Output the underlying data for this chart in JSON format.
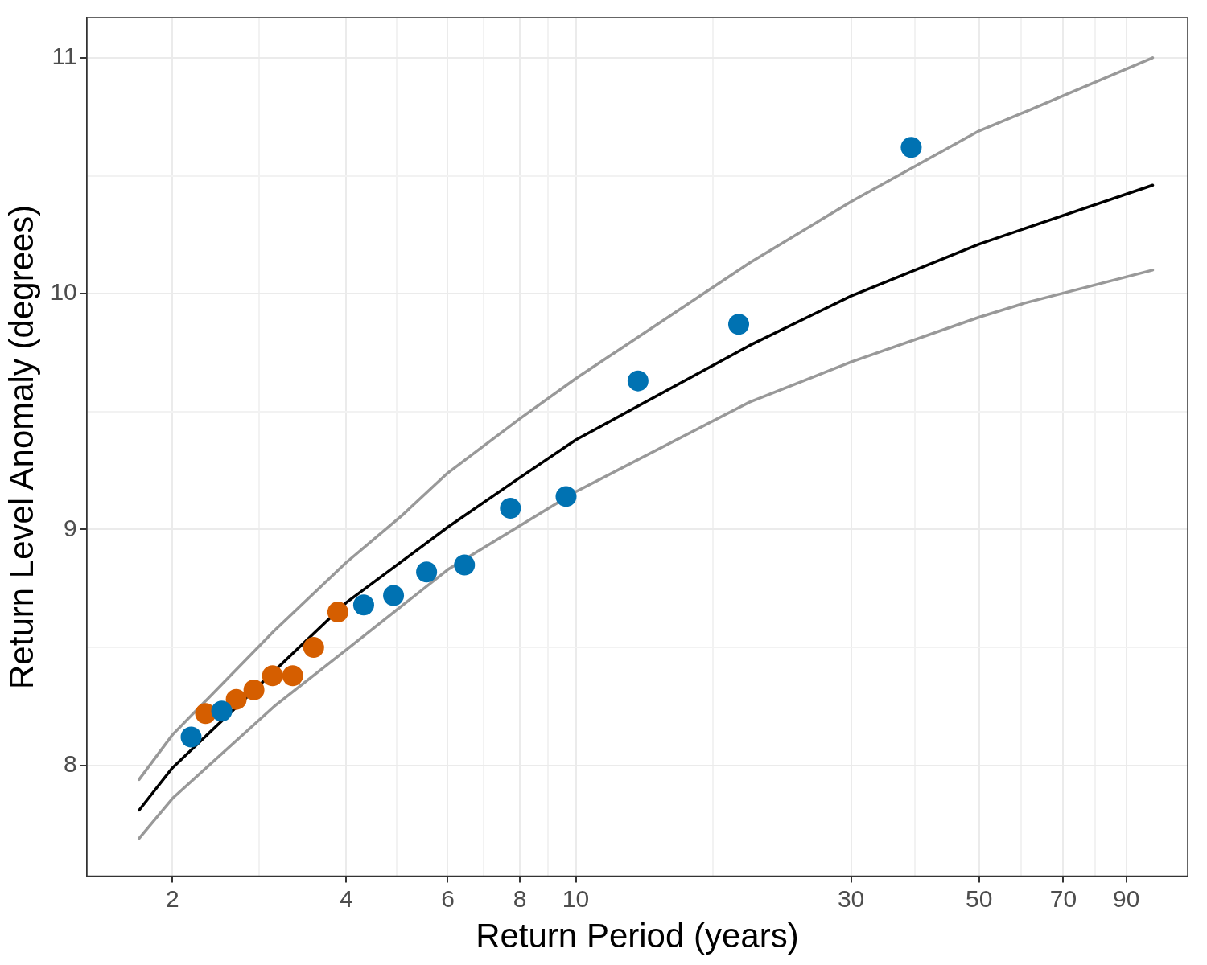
{
  "chart_data": {
    "type": "scatter",
    "xlabel": "Return Period (years)",
    "ylabel": "Return Level Anomaly (degrees)",
    "log": "x",
    "grid": true,
    "legend": false,
    "xlim": [
      1.42,
      115
    ],
    "ylim": [
      7.53,
      11.17
    ],
    "xticks": [
      2,
      {
        "value": 2.83,
        "label": null
      },
      4,
      {
        "value": 4.9,
        "label": null
      },
      6,
      {
        "value": 6.93,
        "label": null
      },
      8,
      {
        "value": 8.94,
        "label": null
      },
      10,
      {
        "value": 17.3,
        "label": null
      },
      30,
      {
        "value": 38.7,
        "label": null
      },
      50,
      {
        "value": 59.2,
        "label": null
      },
      70,
      {
        "value": 79.4,
        "label": null
      },
      90
    ],
    "yticks": [
      8,
      {
        "value": 8.5,
        "label": null
      },
      9,
      {
        "value": 9.5,
        "label": null
      },
      10,
      {
        "value": 10.5,
        "label": null
      },
      11
    ],
    "series": [
      {
        "type": "line",
        "marker": "none",
        "color": "#999999",
        "x": [
          1.75,
          2,
          3,
          4,
          5,
          6,
          8,
          10,
          20,
          30,
          50,
          60,
          100
        ],
        "values": [
          7.94,
          8.13,
          8.57,
          8.86,
          9.06,
          9.24,
          9.47,
          9.64,
          10.13,
          10.39,
          10.69,
          10.77,
          11.0
        ]
      },
      {
        "type": "line",
        "marker": "none",
        "color": "#999999",
        "x": [
          1.75,
          2,
          3,
          4,
          6,
          10,
          20,
          30,
          50,
          60,
          100
        ],
        "values": [
          7.69,
          7.86,
          8.25,
          8.49,
          8.83,
          9.16,
          9.54,
          9.71,
          9.9,
          9.96,
          10.1
        ]
      },
      {
        "type": "line",
        "marker": "none",
        "color": "#000000",
        "x": [
          1.75,
          2,
          4,
          6,
          8,
          10,
          20,
          30,
          50,
          100
        ],
        "values": [
          7.81,
          7.99,
          8.69,
          9.01,
          9.22,
          9.38,
          9.78,
          9.99,
          10.21,
          10.46
        ]
      },
      {
        "type": "scatter",
        "marker": "circle",
        "color": "#0072b2",
        "x": [
          2.154,
          2.434,
          4.289,
          4.832,
          5.513,
          6.414,
          7.704,
          9.62,
          12.82,
          19.16,
          38.15
        ],
        "values": [
          8.12,
          8.23,
          8.68,
          8.72,
          8.82,
          8.85,
          9.09,
          9.14,
          9.63,
          9.87,
          10.62
        ]
      },
      {
        "type": "scatter",
        "marker": "circle",
        "color": "#d55e00",
        "x": [
          2.282,
          2.579,
          2.768,
          2.981,
          3.231,
          3.513,
          3.869
        ],
        "values": [
          8.22,
          8.28,
          8.32,
          8.38,
          8.38,
          8.5,
          8.65
        ]
      }
    ]
  }
}
